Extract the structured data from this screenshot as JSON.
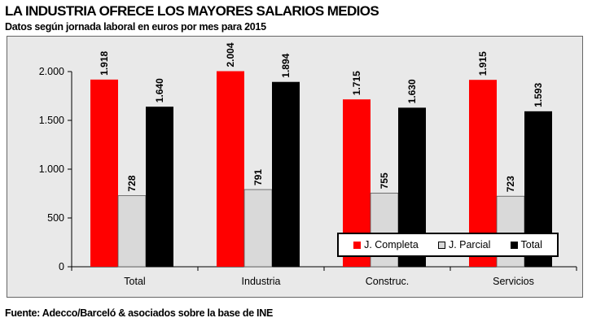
{
  "header": {
    "title": "LA INDUSTRIA OFRECE LOS MAYORES SALARIOS MEDIOS",
    "subtitle": "Datos según jornada laboral en euros por mes para 2015"
  },
  "footer": {
    "source": "Fuente: Adecco/Barceló & asociados sobre la base de INE"
  },
  "chart_data": {
    "type": "bar",
    "title": "LA INDUSTRIA OFRECE LOS MAYORES SALARIOS MEDIOS",
    "subtitle": "Datos según jornada laboral en euros por mes para 2015",
    "categories": [
      "Total",
      "Industria",
      "Construc.",
      "Servicios"
    ],
    "series": [
      {
        "name": "J. Completa",
        "values": [
          1918,
          2004,
          1715,
          1915
        ],
        "labels": [
          "1.918",
          "2.004",
          "1.715",
          "1.915"
        ],
        "color": "#ff0000"
      },
      {
        "name": "J. Parcial",
        "values": [
          728,
          791,
          755,
          723
        ],
        "labels": [
          "728",
          "791",
          "755",
          "723"
        ],
        "color": "#d9d9d9"
      },
      {
        "name": "Total",
        "values": [
          1640,
          1894,
          1630,
          1593
        ],
        "labels": [
          "1.640",
          "1.894",
          "1.630",
          "1.593"
        ],
        "color": "#000000"
      }
    ],
    "ylim": [
      0,
      2000
    ],
    "yticks": [
      0,
      500,
      1000,
      1500,
      2000
    ],
    "ytick_labels": [
      "0",
      "500",
      "1.000",
      "1.500",
      "2.000"
    ],
    "grid": false,
    "legend_position": "bottom-right",
    "background": "#e9e9e9"
  }
}
